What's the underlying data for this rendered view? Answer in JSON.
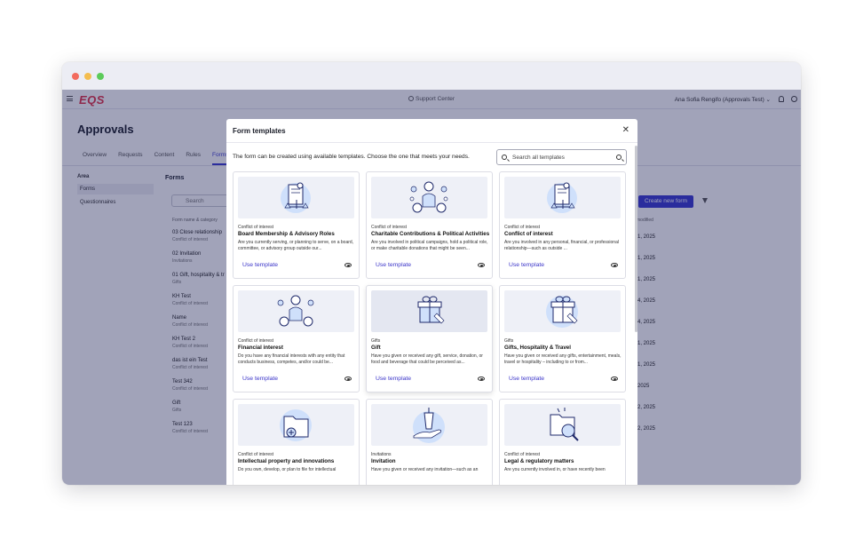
{
  "app": {
    "logo": "EQS",
    "support": "Support Center",
    "user": "Ana Sofia Rengifo (Approvals Test) ⌄"
  },
  "page": {
    "title": "Approvals",
    "tabs": [
      "Overview",
      "Requests",
      "Content",
      "Rules",
      "Forms"
    ],
    "active_tab": "Forms"
  },
  "leftnav": {
    "heading": "Area",
    "items": [
      "Forms",
      "Questionnaires"
    ]
  },
  "forms": {
    "title": "Forms",
    "search_placeholder": "Search",
    "column_header": "Form name & category",
    "create_button": "Create new form",
    "modified_header": "modified",
    "rows": [
      {
        "name": "03 Close relationship",
        "category": "Conflict of interest"
      },
      {
        "name": "02 Invitation",
        "category": "Invitations"
      },
      {
        "name": "01 Gift, hospitality & tr",
        "category": "Gifts"
      },
      {
        "name": "KH Test",
        "category": "Conflict of interest"
      },
      {
        "name": "Name",
        "category": "Conflict of interest"
      },
      {
        "name": "KH Test 2",
        "category": "Conflict of interest"
      },
      {
        "name": "das ist ein Test",
        "category": "Conflict of interest"
      },
      {
        "name": "Test 342",
        "category": "Conflict of interest"
      },
      {
        "name": "Gift",
        "category": "Gifts"
      },
      {
        "name": "Test 123",
        "category": "Conflict of interest"
      }
    ],
    "dates": [
      "1, 2025",
      "1, 2025",
      "1, 2025",
      "4, 2025",
      "4, 2025",
      "1, 2025",
      "1, 2025",
      "2025",
      "2, 2025",
      "2, 2025"
    ]
  },
  "modal": {
    "title": "Form templates",
    "intro": "The form can be created using available templates. Choose the one that meets your needs.",
    "search_placeholder": "Search all templates",
    "use_label": "Use template",
    "cards": [
      {
        "category": "Conflict of interest",
        "title": "Board Membership & Advisory Roles",
        "desc": "Are you currently serving, or planning to serve, on a board, committee, or advisory group outside our...",
        "icon": "document-scale-icon"
      },
      {
        "category": "Conflict of interest",
        "title": "Charitable Contributions & Political Activities",
        "desc": "Are you involved in political campaigns, hold a political role, or make charitable donations that might be seen...",
        "icon": "person-moneybags-icon"
      },
      {
        "category": "Conflict of interest",
        "title": "Conflict of interest",
        "desc": "Are you involved in any personal, financial, or professional relationship—such as outside ...",
        "icon": "document-scale-icon"
      },
      {
        "category": "Conflict of interest",
        "title": "Financial interest",
        "desc": "Do you have any financial interests with any entity that conducts business, competes, and/or could be...",
        "icon": "person-moneybags-icon"
      },
      {
        "category": "Gifts",
        "title": "Gift",
        "desc": "Have you given or received any gift, service, donation, or food and beverage that could be perceived as...",
        "icon": "gift-icon"
      },
      {
        "category": "Gifts",
        "title": "Gifts, Hospitality & Travel",
        "desc": "Have you given or received any gifts, entertainment, meals, travel or hospitality – including to or from...",
        "icon": "gift-icon"
      },
      {
        "category": "Conflict of interest",
        "title": "Intellectual property and innovations",
        "desc": "Do you own, develop, or plan to file for intellectual",
        "icon": "folder-plus-icon"
      },
      {
        "category": "Invitations",
        "title": "Invitation",
        "desc": "Have you given or received any invitation—such as an",
        "icon": "hand-cup-icon"
      },
      {
        "category": "Conflict of interest",
        "title": "Legal & regulatory matters",
        "desc": "Are you currently involved in, or have recently been",
        "icon": "folder-magnifier-icon"
      }
    ]
  },
  "colors": {
    "accent": "#3b35c9",
    "overlay": "#141850",
    "illustration_fill": "#cfe0fb",
    "illustration_stroke": "#1f2a6b"
  }
}
